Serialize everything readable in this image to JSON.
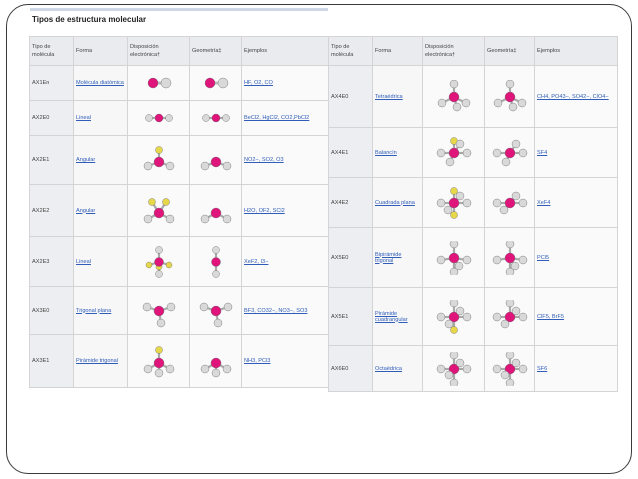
{
  "caption": "Tipos de estructura molecular",
  "headers": {
    "tipo": "Tipo de molécula",
    "forma": "Forma",
    "disposicion": "Disposición electrónica†",
    "geometria": "Geometría‡",
    "ejemplos": "Ejemplos"
  },
  "left_rows": [
    {
      "code": "AX1En",
      "forma": "Molécula diatómica",
      "ejemplos": "HF, O2, CO"
    },
    {
      "code": "AX2E0",
      "forma": "Lineal",
      "ejemplos": "BeCl2, HgCl2, CO2,PbCl2"
    },
    {
      "code": "AX2E1",
      "forma": "Angular",
      "ejemplos": "NO2−, SO2, O3"
    },
    {
      "code": "AX2E2",
      "forma": "Angular",
      "ejemplos": "H2O, OF2, SCl2"
    },
    {
      "code": "AX2E3",
      "forma": "Lineal",
      "ejemplos": "XeF2, I3−"
    },
    {
      "code": "AX3E0",
      "forma": "Trigonal plana",
      "ejemplos": "BF3, CO32−, NO3−, SO3"
    },
    {
      "code": "AX3E1",
      "forma": "Pirámide trigonal",
      "ejemplos": "NH3, PCl3"
    }
  ],
  "right_rows": [
    {
      "code": "AX4E0",
      "forma": "Tetraédrica",
      "ejemplos": "CH4, PO43−, SO42−, ClO4−"
    },
    {
      "code": "AX4E1",
      "forma": "Balancín",
      "ejemplos": "SF4"
    },
    {
      "code": "AX4E2",
      "forma": "Cuadrada plana",
      "ejemplos": "XeF4"
    },
    {
      "code": "AX5E0",
      "forma": "Bipirámide trigonal",
      "ejemplos": "PCl5"
    },
    {
      "code": "AX5E1",
      "forma": "Pirámide cuadrangular",
      "ejemplos": "ClF5, BrF5"
    },
    {
      "code": "AX6E0",
      "forma": "Octaédrica",
      "ejemplos": "SF6"
    }
  ],
  "colors": {
    "central_atom": "#e0157c",
    "ligand_atom": "#d9d9d9",
    "lone_pair": "#e6d84a",
    "link": "#2f5db8"
  }
}
